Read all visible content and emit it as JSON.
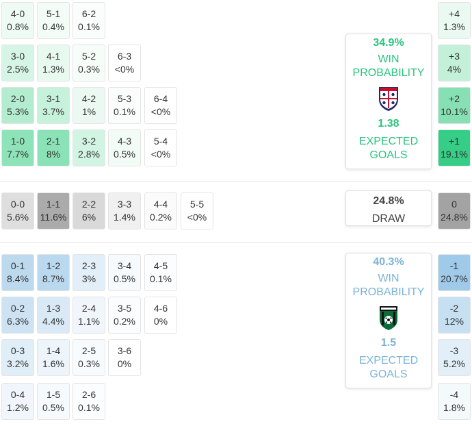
{
  "colors": {
    "home_accent": "#28c47e",
    "away_accent": "#7ab4d6",
    "draw_text": "#444444"
  },
  "home_scores": [
    {
      "score": "4-0",
      "pct": "0.8%",
      "col": 0,
      "row": 0,
      "bg": "#eefbf4"
    },
    {
      "score": "5-1",
      "pct": "0.4%",
      "col": 1,
      "row": 0,
      "bg": "#f4fcf8"
    },
    {
      "score": "6-2",
      "pct": "0.1%",
      "col": 2,
      "row": 0,
      "bg": "#fafdfb"
    },
    {
      "score": "3-0",
      "pct": "2.5%",
      "col": 0,
      "row": 1,
      "bg": "#d6f5e6"
    },
    {
      "score": "4-1",
      "pct": "1.3%",
      "col": 1,
      "row": 1,
      "bg": "#e8f9f0"
    },
    {
      "score": "5-2",
      "pct": "0.3%",
      "col": 2,
      "row": 1,
      "bg": "#f6fdf9"
    },
    {
      "score": "6-3",
      "pct": "<0%",
      "col": 3,
      "row": 1,
      "bg": "#ffffff"
    },
    {
      "score": "2-0",
      "pct": "5.3%",
      "col": 0,
      "row": 2,
      "bg": "#b4eccf"
    },
    {
      "score": "3-1",
      "pct": "3.7%",
      "col": 1,
      "row": 2,
      "bg": "#c6f1db"
    },
    {
      "score": "4-2",
      "pct": "1%",
      "col": 2,
      "row": 2,
      "bg": "#ebf9f2"
    },
    {
      "score": "5-3",
      "pct": "0.1%",
      "col": 3,
      "row": 2,
      "bg": "#fafdfb"
    },
    {
      "score": "6-4",
      "pct": "<0%",
      "col": 4,
      "row": 2,
      "bg": "#ffffff"
    },
    {
      "score": "1-0",
      "pct": "7.7%",
      "col": 0,
      "row": 3,
      "bg": "#8fe3b9"
    },
    {
      "score": "2-1",
      "pct": "8%",
      "col": 1,
      "row": 3,
      "bg": "#8ce2b7"
    },
    {
      "score": "3-2",
      "pct": "2.8%",
      "col": 2,
      "row": 3,
      "bg": "#d2f4e3"
    },
    {
      "score": "4-3",
      "pct": "0.5%",
      "col": 3,
      "row": 3,
      "bg": "#f2fbf6"
    },
    {
      "score": "5-4",
      "pct": "<0%",
      "col": 4,
      "row": 3,
      "bg": "#ffffff"
    }
  ],
  "draw_scores": [
    {
      "score": "0-0",
      "pct": "5.6%",
      "col": 0,
      "bg": "#dedede"
    },
    {
      "score": "1-1",
      "pct": "11.6%",
      "col": 1,
      "bg": "#ababab"
    },
    {
      "score": "2-2",
      "pct": "6%",
      "col": 2,
      "bg": "#d9d9d9"
    },
    {
      "score": "3-3",
      "pct": "1.4%",
      "col": 3,
      "bg": "#f0f0f0"
    },
    {
      "score": "4-4",
      "pct": "0.2%",
      "col": 4,
      "bg": "#fbfbfb"
    },
    {
      "score": "5-5",
      "pct": "<0%",
      "col": 5,
      "bg": "#ffffff"
    }
  ],
  "away_scores": [
    {
      "score": "0-1",
      "pct": "8.4%",
      "col": 0,
      "row": 0,
      "bg": "#bcd9ee"
    },
    {
      "score": "1-2",
      "pct": "8.7%",
      "col": 1,
      "row": 0,
      "bg": "#bad8ee"
    },
    {
      "score": "2-3",
      "pct": "3%",
      "col": 2,
      "row": 0,
      "bg": "#e2eff8"
    },
    {
      "score": "3-4",
      "pct": "0.5%",
      "col": 3,
      "row": 0,
      "bg": "#f6fafd"
    },
    {
      "score": "4-5",
      "pct": "0.1%",
      "col": 4,
      "row": 0,
      "bg": "#fcfdfe"
    },
    {
      "score": "0-2",
      "pct": "6.3%",
      "col": 0,
      "row": 1,
      "bg": "#cde3f3"
    },
    {
      "score": "1-3",
      "pct": "4.4%",
      "col": 1,
      "row": 1,
      "bg": "#d9eaf6"
    },
    {
      "score": "2-4",
      "pct": "1.1%",
      "col": 2,
      "row": 1,
      "bg": "#f0f6fb"
    },
    {
      "score": "3-5",
      "pct": "0.2%",
      "col": 3,
      "row": 1,
      "bg": "#fafcfe"
    },
    {
      "score": "4-6",
      "pct": "0%",
      "col": 4,
      "row": 1,
      "bg": "#ffffff"
    },
    {
      "score": "0-3",
      "pct": "3.2%",
      "col": 0,
      "row": 2,
      "bg": "#e0eef8"
    },
    {
      "score": "1-4",
      "pct": "1.6%",
      "col": 1,
      "row": 2,
      "bg": "#edf5fb"
    },
    {
      "score": "2-5",
      "pct": "0.3%",
      "col": 2,
      "row": 2,
      "bg": "#f8fbfd"
    },
    {
      "score": "3-6",
      "pct": "0%",
      "col": 3,
      "row": 2,
      "bg": "#ffffff"
    },
    {
      "score": "0-4",
      "pct": "1.2%",
      "col": 0,
      "row": 3,
      "bg": "#f0f6fb"
    },
    {
      "score": "1-5",
      "pct": "0.5%",
      "col": 1,
      "row": 3,
      "bg": "#f6fafd"
    },
    {
      "score": "2-6",
      "pct": "0.1%",
      "col": 2,
      "row": 3,
      "bg": "#fcfdfe"
    }
  ],
  "home_margins": [
    {
      "margin": "+4",
      "pct": "1.3%",
      "row": 0,
      "bg": "#eaf9f1"
    },
    {
      "margin": "+3",
      "pct": "4%",
      "row": 1,
      "bg": "#c3f0d9"
    },
    {
      "margin": "+2",
      "pct": "10.1%",
      "row": 2,
      "bg": "#86e0b3"
    },
    {
      "margin": "+1",
      "pct": "19.1%",
      "row": 3,
      "bg": "#36cd86"
    }
  ],
  "draw_margin": {
    "margin": "0",
    "pct": "24.8%",
    "bg": "#a3a3a3"
  },
  "away_margins": [
    {
      "margin": "-1",
      "pct": "20.7%",
      "row": 0,
      "bg": "#9fcaea"
    },
    {
      "margin": "-2",
      "pct": "12%",
      "row": 1,
      "bg": "#c6e0f2"
    },
    {
      "margin": "-3",
      "pct": "5.2%",
      "row": 2,
      "bg": "#e2eff8"
    },
    {
      "margin": "-4",
      "pct": "1.8%",
      "row": 3,
      "bg": "#f4f9fc"
    }
  ],
  "home_card": {
    "win_pct": "34.9%",
    "win_label": "WIN PROBABILITY",
    "expected_goals": "1.38",
    "xg_label": "EXPECTED GOALS",
    "logo_icon": "cagliari-crest-icon"
  },
  "draw_card": {
    "pct": "24.8%",
    "label": "DRAW"
  },
  "away_card": {
    "win_pct": "40.3%",
    "win_label": "WIN PROBABILITY",
    "expected_goals": "1.5",
    "xg_label": "EXPECTED GOALS",
    "logo_icon": "sassuolo-crest-icon"
  }
}
